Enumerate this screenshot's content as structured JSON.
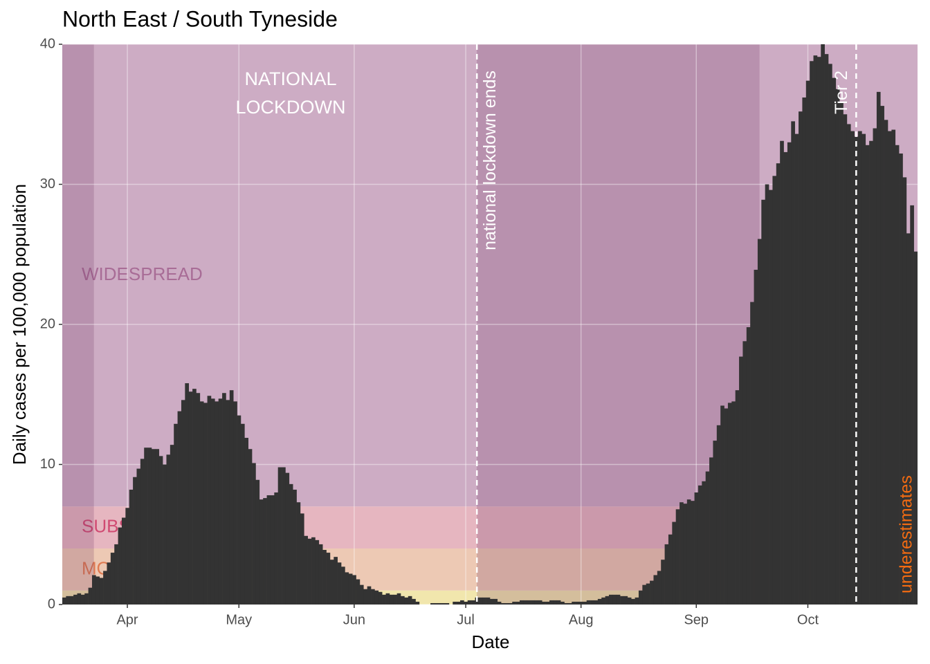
{
  "chart_data": {
    "type": "bar",
    "title": "North East / South Tyneside",
    "x_label": "Date",
    "y_label": "Daily cases per 100,000 population",
    "color": "#333333",
    "x": [
      0,
      1,
      2,
      3,
      4,
      5,
      6,
      7,
      8,
      9,
      10,
      11,
      12,
      13,
      14,
      15,
      16,
      17,
      18,
      19,
      20,
      21,
      22,
      23,
      24,
      25,
      26,
      27,
      28,
      29,
      30,
      31,
      32,
      33,
      34,
      35,
      36,
      37,
      38,
      39,
      40,
      41,
      42,
      43,
      44,
      45,
      46,
      47,
      48,
      49,
      50,
      51,
      52,
      53,
      54,
      55,
      56,
      57,
      58,
      59,
      60,
      61,
      62,
      63,
      64,
      65,
      66,
      67,
      68,
      69,
      70,
      71,
      72,
      73,
      74,
      75,
      76,
      77,
      78,
      79,
      80,
      81,
      82,
      83,
      84,
      85,
      86,
      87,
      88,
      89,
      90,
      91,
      92,
      93,
      94,
      95,
      96,
      97,
      98,
      99,
      100,
      101,
      102,
      103,
      104,
      105,
      106,
      107,
      108,
      109,
      110,
      111,
      112,
      113,
      114,
      115,
      116,
      117,
      118,
      119,
      120,
      121,
      122,
      123,
      124,
      125,
      126,
      127,
      128,
      129,
      130,
      131,
      132,
      133,
      134,
      135,
      136,
      137,
      138,
      139,
      140,
      141,
      142,
      143,
      144,
      145,
      146,
      147,
      148,
      149,
      150,
      151,
      152,
      153,
      154,
      155,
      156,
      157,
      158,
      159,
      160,
      161,
      162,
      163,
      164,
      165,
      166,
      167,
      168,
      169,
      170,
      171,
      172,
      173,
      174,
      175,
      176,
      177,
      178,
      179,
      180,
      181,
      182,
      183,
      184,
      185,
      186,
      187,
      188,
      189,
      190,
      191,
      192,
      193,
      194,
      195,
      196,
      197,
      198,
      199,
      200,
      201,
      202,
      203,
      204,
      205,
      206,
      207,
      208,
      209,
      210,
      211,
      212,
      213,
      214,
      215,
      216,
      217,
      218,
      219,
      220,
      221,
      222,
      223,
      224,
      225,
      226,
      227,
      228,
      229
    ],
    "values": [
      0.5,
      0.6,
      0.6,
      0.7,
      0.8,
      0.7,
      0.8,
      1.2,
      2.1,
      2.0,
      1.9,
      2.4,
      3.0,
      3.7,
      4.3,
      5.5,
      6.2,
      6.9,
      8.2,
      9.1,
      9.7,
      10.4,
      11.2,
      11.2,
      11.1,
      11.1,
      10.6,
      10.0,
      10.7,
      11.4,
      12.9,
      13.8,
      14.6,
      15.8,
      15.2,
      15.4,
      15.1,
      14.5,
      14.4,
      14.9,
      14.7,
      14.5,
      14.7,
      15.1,
      14.6,
      15.3,
      14.5,
      13.5,
      12.9,
      11.9,
      11.1,
      10.1,
      8.9,
      7.5,
      7.6,
      7.8,
      7.8,
      8.0,
      9.8,
      9.8,
      9.4,
      8.6,
      8.2,
      7.3,
      6.5,
      4.9,
      4.7,
      4.8,
      4.6,
      4.3,
      3.9,
      3.7,
      3.2,
      3.4,
      3.0,
      2.7,
      2.3,
      2.2,
      2.1,
      1.8,
      1.4,
      1.1,
      1.3,
      1.1,
      1.0,
      0.9,
      0.7,
      0.8,
      0.7,
      0.7,
      0.8,
      0.6,
      0.5,
      0.6,
      0.4,
      0.2,
      0.0,
      0.0,
      0.0,
      0.1,
      0.1,
      0.1,
      0.1,
      0.1,
      0.0,
      0.2,
      0.2,
      0.3,
      0.2,
      0.3,
      0.3,
      0.5,
      0.5,
      0.5,
      0.5,
      0.4,
      0.4,
      0.2,
      0.1,
      0.1,
      0.1,
      0.2,
      0.2,
      0.3,
      0.3,
      0.3,
      0.3,
      0.3,
      0.3,
      0.2,
      0.2,
      0.3,
      0.3,
      0.3,
      0.2,
      0.1,
      0.1,
      0.2,
      0.2,
      0.2,
      0.2,
      0.3,
      0.3,
      0.3,
      0.4,
      0.5,
      0.6,
      0.7,
      0.7,
      0.7,
      0.6,
      0.6,
      0.5,
      0.4,
      0.5,
      1.0,
      1.4,
      1.5,
      1.7,
      2.1,
      2.4,
      3.2,
      4.3,
      5.0,
      5.9,
      6.8,
      7.3,
      7.2,
      7.5,
      7.4,
      8.0,
      8.5,
      8.8,
      9.5,
      10.5,
      11.7,
      12.8,
      14.2,
      14.0,
      14.4,
      14.5,
      15.3,
      17.7,
      18.8,
      19.8,
      21.6,
      23.9,
      26.1,
      28.9,
      30.0,
      29.6,
      30.6,
      31.5,
      33.1,
      32.3,
      33.0,
      34.5,
      33.6,
      35.2,
      36.2,
      37.4,
      38.8,
      39.2,
      39.1,
      40.0,
      39.3,
      38.6,
      37.6,
      36.8,
      35.9,
      35.0,
      34.3,
      33.8,
      33.4,
      33.8,
      33.6,
      32.8,
      33.1,
      34.0,
      36.6,
      35.6,
      34.6,
      33.8,
      33.9,
      32.8,
      32.2,
      30.5,
      26.5,
      28.5,
      25.2
    ],
    "xlim": [
      -0.5,
      229.5
    ],
    "xticks": [
      {
        "value": 17,
        "label": "Apr"
      },
      {
        "value": 47,
        "label": "May"
      },
      {
        "value": 78,
        "label": "Jun"
      },
      {
        "value": 108,
        "label": "Jul"
      },
      {
        "value": 139,
        "label": "Aug"
      },
      {
        "value": 170,
        "label": "Sep"
      },
      {
        "value": 200,
        "label": "Oct"
      }
    ],
    "ylim": [
      0,
      40
    ],
    "yticks": [
      0,
      10,
      20,
      30,
      40
    ],
    "grid": true,
    "zones": [
      {
        "from": 0,
        "to": 1,
        "color": "#f1e6ad"
      },
      {
        "name": "MODERATE",
        "from": 1,
        "to": 4,
        "color": "#edc9b4",
        "label_color": "#e07a50"
      },
      {
        "name": "SUBSTANTIAL",
        "from": 4,
        "to": 7,
        "color": "#e6b6c0",
        "label_color": "#d04a72"
      },
      {
        "name": "WIDESPREAD",
        "from": 7,
        "to": 40,
        "color": "#cdacc4",
        "label_color": "#a86c96"
      }
    ],
    "periods": [
      [
        -0.5,
        8
      ],
      [
        111,
        187
      ]
    ],
    "period_color": "#6e325f",
    "lockdown_label": [
      "NATIONAL",
      "LOCKDOWN"
    ],
    "events": [
      {
        "x": 111,
        "label": "national lockdown ends"
      },
      {
        "x": 213,
        "label": "Tier 2"
      }
    ],
    "note": "underestimates",
    "note_color": "#f26b12"
  }
}
